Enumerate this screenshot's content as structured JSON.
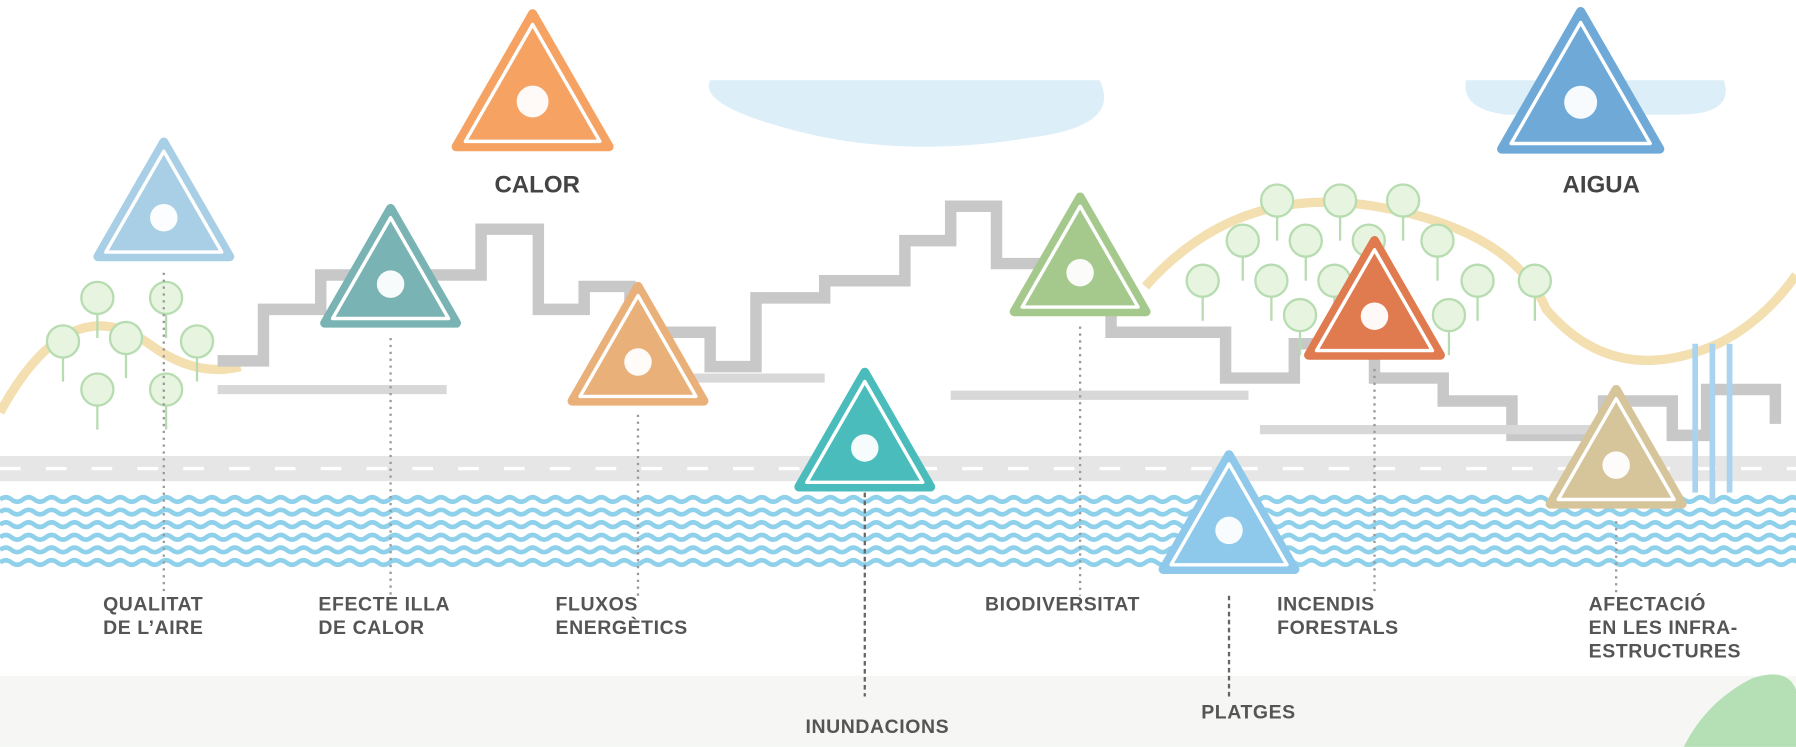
{
  "headers": [
    {
      "text": "CALOR"
    },
    {
      "text": "AIGUA"
    }
  ],
  "risks": [
    {
      "lines": [
        "QUALITAT",
        "DE L’AIRE"
      ]
    },
    {
      "lines": [
        "EFECTE ILLA",
        "DE CALOR"
      ]
    },
    {
      "lines": [
        "FLUXOS",
        "ENERGÈTICS"
      ]
    },
    {
      "lines": [
        "INUNDACIONS"
      ]
    },
    {
      "lines": [
        "BIODIVERSITAT"
      ]
    },
    {
      "lines": [
        "PLATGES"
      ]
    },
    {
      "lines": [
        "INCENDIS",
        "FORESTALS"
      ]
    },
    {
      "lines": [
        "AFECTACIÓ",
        "EN LES INFRA-",
        "ESTRUCTURES"
      ]
    }
  ]
}
